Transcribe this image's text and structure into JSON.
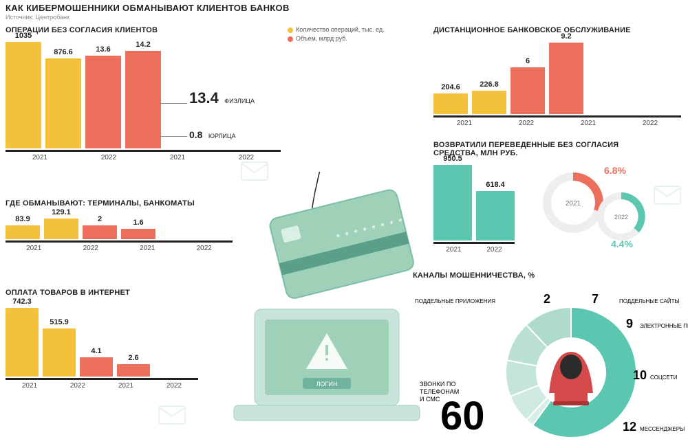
{
  "meta": {
    "title": "КАК КИБЕРМОШЕННИКИ ОБМАНЫВАЮТ КЛИЕНТОВ БАНКОВ",
    "source": "Источник: Центробанк"
  },
  "colors": {
    "yellow": "#f3c13a",
    "red": "#eb6f5b",
    "teal": "#5bc7b1",
    "mint": "#9fd0b8",
    "dark": "#222222",
    "axis": "#222222",
    "grey": "#888888"
  },
  "legend": {
    "ops": {
      "label": "Количество операций, тыс. ед.",
      "color": "#f3c13a"
    },
    "vol": {
      "label": "Объем, млрд руб.",
      "color": "#eb6f5b"
    }
  },
  "sections": {
    "non_consent": {
      "title": "ОПЕРАЦИИ БЕЗ СОГЛАСИЯ КЛИЕНТОВ",
      "years": [
        "2021",
        "2022",
        "2021",
        "2022"
      ],
      "values": [
        1035,
        876.6,
        13.6,
        14.2
      ],
      "colors": [
        "#f3c13a",
        "#f3c13a",
        "#eb6f5b",
        "#eb6f5b"
      ],
      "heights": [
        155,
        131,
        135,
        142
      ],
      "split": {
        "big_value": "13.4",
        "big_label": "ФИЗЛИЦА",
        "small_value": "0.8",
        "small_label": "ЮРЛИЦА"
      }
    },
    "atm": {
      "title": "ГДЕ ОБМАНЫВАЮТ: ТЕРМИНАЛЫ, БАНКОМАТЫ",
      "years": [
        "2021",
        "2022",
        "2021",
        "2022"
      ],
      "values": [
        83.9,
        129.1,
        2.0,
        1.6
      ],
      "colors": [
        "#f3c13a",
        "#f3c13a",
        "#eb6f5b",
        "#eb6f5b"
      ],
      "heights": [
        20,
        30,
        20,
        15
      ]
    },
    "internet": {
      "title": "ОПЛАТА ТОВАРОВ В ИНТЕРНЕТ",
      "years": [
        "2021",
        "2022",
        "2021",
        "2022"
      ],
      "values": [
        742.3,
        515.9,
        4.1,
        2.6
      ],
      "colors": [
        "#f3c13a",
        "#f3c13a",
        "#eb6f5b",
        "#eb6f5b"
      ],
      "heights": [
        100,
        70,
        28,
        18
      ]
    },
    "remote": {
      "title": "ДИСТАНЦИОННОЕ БАНКОВСКОЕ ОБСЛУЖИВАНИЕ",
      "years": [
        "2021",
        "2022",
        "2021",
        "2022"
      ],
      "values": [
        204.6,
        226.8,
        6.0,
        9.2
      ],
      "colors": [
        "#f3c13a",
        "#f3c13a",
        "#eb6f5b",
        "#eb6f5b"
      ],
      "heights": [
        30,
        34,
        68,
        104
      ]
    },
    "returned": {
      "title": "ВОЗВРАТИЛИ ПЕРЕВЕДЕННЫЕ БЕЗ СОГЛАСИЯ СРЕДСТВА, МЛН РУБ.",
      "years": [
        "2021",
        "2022"
      ],
      "values": [
        950.5,
        618.4
      ],
      "colors": [
        "#5bc7b1",
        "#5bc7b1"
      ],
      "heights": [
        110,
        72
      ],
      "pct": {
        "y2021": {
          "v": "6.8%",
          "label": "2021",
          "color": "#eb6f5b"
        },
        "y2022": {
          "v": "4.4%",
          "label": "2022",
          "color": "#5bc7b1"
        }
      }
    },
    "channels": {
      "title": "КАНАЛЫ МОШЕННИЧЕСТВА, %",
      "slices": [
        {
          "label": "ЗВОНКИ ПО ТЕЛЕФОНАМ И СМС",
          "value": 60,
          "color": "#5bc7b1"
        },
        {
          "label": "ПОДДЕЛЬНЫЕ ПРИЛОЖЕНИЯ",
          "value": 2,
          "color": "#d8efe7"
        },
        {
          "label": "ПОДДЕЛЬНЫЕ САЙТЫ",
          "value": 7,
          "color": "#cfeae1"
        },
        {
          "label": "ЭЛЕКТРОННЫЕ ПИСЬМА",
          "value": 9,
          "color": "#c5e5db"
        },
        {
          "label": "СОЦСЕТИ",
          "value": 10,
          "color": "#badfd4"
        },
        {
          "label": "МЕССЕНДЖЕРЫ",
          "value": 12,
          "color": "#afdace"
        }
      ]
    }
  },
  "illustration": {
    "login": "ЛОГИН"
  }
}
